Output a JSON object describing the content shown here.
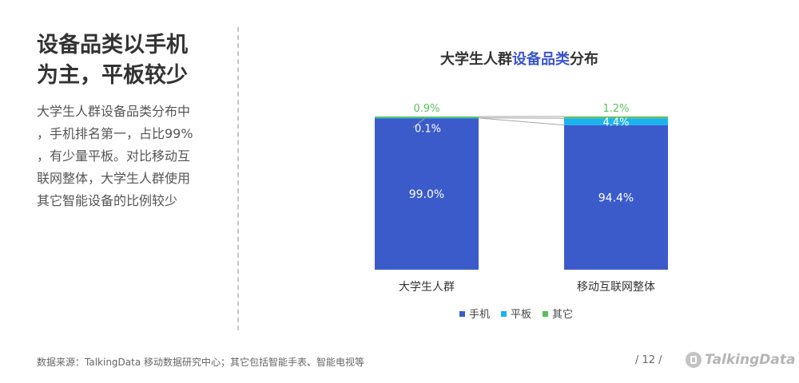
{
  "headline": {
    "line1": "设备品类以手机",
    "line2": "为主，平板较少"
  },
  "description": {
    "lines": [
      "大学生人群设备品类分布中",
      "，手机排名第一，占比99%",
      "，有少量平板。对比移动互",
      "联网整体，大学生人群使用",
      "其它智能设备的比例较少"
    ]
  },
  "chart_title": {
    "prefix": "大学生人群",
    "highlight": "设备品类",
    "suffix": "分布"
  },
  "chart_data": {
    "type": "bar",
    "stacked": true,
    "categories": [
      "大学生人群",
      "移动互联网整体"
    ],
    "series": [
      {
        "name": "手机",
        "color": "#3b5bcb",
        "values": [
          99.0,
          94.4
        ],
        "labels": [
          "99.0%",
          "94.4%"
        ]
      },
      {
        "name": "平板",
        "color": "#19b3f0",
        "values": [
          0.1,
          4.4
        ],
        "labels": [
          "0.1%",
          "4.4%"
        ]
      },
      {
        "name": "其它",
        "color": "#5cc05a",
        "values": [
          0.9,
          1.2
        ],
        "labels": [
          "0.9%",
          "1.2%"
        ]
      }
    ],
    "ylim": [
      0,
      100
    ],
    "legend_position": "bottom",
    "grid": false,
    "connectors": true
  },
  "footer": {
    "source": "数据来源：TalkingData 移动数据研究中心；其它包括智能手表、智能电视等",
    "page": "/  12  /",
    "brand": "TalkingData"
  }
}
